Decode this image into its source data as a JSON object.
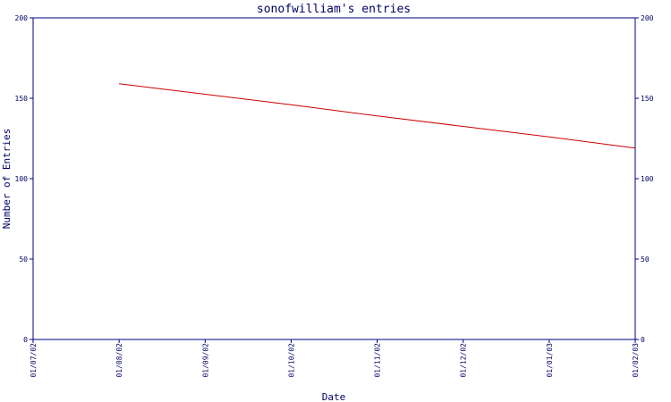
{
  "chart_data": {
    "type": "line",
    "title": "sonofwilliam's entries",
    "xlabel": "Date",
    "ylabel": "Number of Entries",
    "categories": [
      "01/07/02",
      "01/08/02",
      "01/09/02",
      "01/10/02",
      "01/11/02",
      "01/12/02",
      "01/01/03",
      "01/02/03"
    ],
    "yticks": [
      0,
      50,
      100,
      150,
      200
    ],
    "ylim": [
      0,
      200
    ],
    "series": [
      {
        "values": [
          null,
          159,
          152.5,
          146,
          139,
          132.5,
          126,
          119
        ]
      }
    ],
    "grid": false,
    "colors": {
      "axis": "#000080",
      "text": "#000066",
      "line": "#cc0000"
    }
  }
}
